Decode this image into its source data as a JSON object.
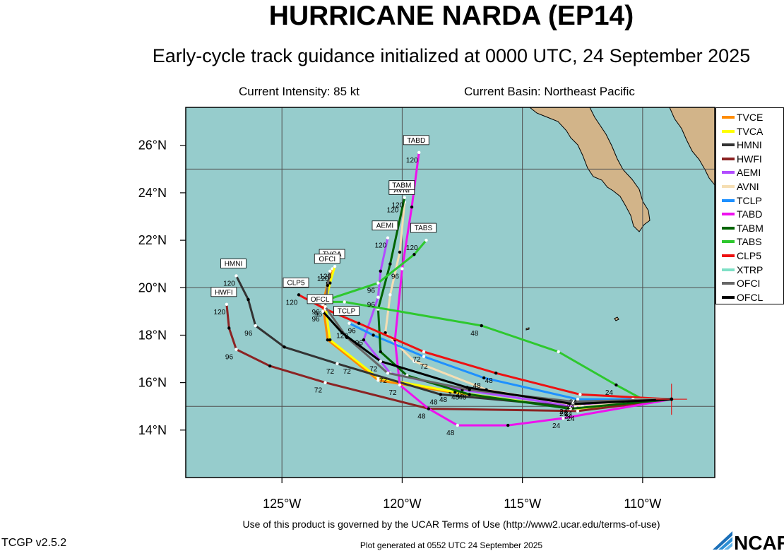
{
  "header": {
    "title": "HURRICANE NARDA (EP14)",
    "subtitle": "Early-cycle track guidance initialized at 0000 UTC, 24 September 2025",
    "intensity": "Current Intensity: 85 kt",
    "basin": "Current Basin: Northeast Pacific"
  },
  "footer": {
    "terms": "Use of this product is governed by the UCAR Terms of Use (http://www2.ucar.edu/terms-of-use)",
    "version": "TCGP v2.5.2",
    "generated": "Plot generated at 0552 UTC  24 September 2025",
    "logo_text": "NCAR"
  },
  "colors": {
    "ocean": "#96cccc",
    "land": "#d2b489",
    "grid": "#505050",
    "storm_marker": "#dd2222"
  },
  "chart_data": {
    "type": "line",
    "xlim": [
      -129,
      -107
    ],
    "ylim": [
      12,
      27.6
    ],
    "x_ticks": [
      -125,
      -120,
      -115,
      -110
    ],
    "x_tick_labels": [
      "125°W",
      "120°W",
      "115°W",
      "110°W"
    ],
    "y_ticks": [
      14,
      16,
      18,
      20,
      22,
      24,
      26
    ],
    "y_tick_labels": [
      "14°N",
      "16°N",
      "18°N",
      "20°N",
      "22°N",
      "24°N",
      "26°N"
    ],
    "grid": true,
    "legend_position": "right",
    "initial_position": [
      -108.8,
      15.3
    ],
    "series": [
      {
        "name": "TVCE",
        "color": "#ff8c00",
        "points": [
          [
            -108.8,
            15.3
          ],
          [
            -112.8,
            14.9
          ],
          [
            -118.0,
            15.6
          ],
          [
            -121.0,
            16.1
          ],
          [
            -123.1,
            17.8
          ],
          [
            -123.3,
            19.3
          ],
          [
            -123.1,
            20.2
          ],
          [
            -122.9,
            20.8
          ]
        ],
        "hour_labels": [
          {
            "lon": -112.8,
            "lat": 14.9,
            "text": "24"
          },
          {
            "lon": -118.0,
            "lat": 15.6,
            "text": "48"
          },
          {
            "lon": -122.0,
            "lat": 16.8,
            "text": "72"
          },
          {
            "lon": -123.3,
            "lat": 19.3,
            "text": "96"
          },
          {
            "lon": -122.9,
            "lat": 20.8,
            "text": "120"
          }
        ]
      },
      {
        "name": "TVCA",
        "color": "#ffff00",
        "points": [
          [
            -108.8,
            15.3
          ],
          [
            -112.8,
            14.9
          ],
          [
            -117.8,
            15.6
          ],
          [
            -121.0,
            16.2
          ],
          [
            -123.0,
            17.8
          ],
          [
            -123.2,
            19.3
          ],
          [
            -123.0,
            20.2
          ],
          [
            -122.8,
            20.9
          ]
        ],
        "hour_labels": [],
        "tag": "TVCA"
      },
      {
        "name": "HMNI",
        "color": "#333333",
        "points": [
          [
            -108.8,
            15.3
          ],
          [
            -113.0,
            15.0
          ],
          [
            -118.4,
            15.5
          ],
          [
            -122.7,
            16.8
          ],
          [
            -124.9,
            17.5
          ],
          [
            -126.1,
            18.4
          ],
          [
            -126.4,
            19.5
          ],
          [
            -126.9,
            20.5
          ]
        ],
        "hour_labels": [
          {
            "lon": -113.0,
            "lat": 15.0,
            "text": "24"
          },
          {
            "lon": -118.4,
            "lat": 15.5,
            "text": "48"
          },
          {
            "lon": -122.7,
            "lat": 16.8,
            "text": "72"
          },
          {
            "lon": -126.1,
            "lat": 18.4,
            "text": "96"
          },
          {
            "lon": -126.9,
            "lat": 20.5,
            "text": "120"
          }
        ],
        "tag": "HMNI"
      },
      {
        "name": "HWFI",
        "color": "#8b2323",
        "points": [
          [
            -108.8,
            15.3
          ],
          [
            -112.7,
            14.8
          ],
          [
            -118.9,
            14.9
          ],
          [
            -123.2,
            16.0
          ],
          [
            -125.5,
            16.7
          ],
          [
            -126.9,
            17.4
          ],
          [
            -127.2,
            18.3
          ],
          [
            -127.3,
            19.3
          ]
        ],
        "hour_labels": [
          {
            "lon": -112.7,
            "lat": 14.8,
            "text": "24"
          },
          {
            "lon": -118.9,
            "lat": 14.9,
            "text": "48"
          },
          {
            "lon": -123.2,
            "lat": 16.0,
            "text": "72"
          },
          {
            "lon": -126.9,
            "lat": 17.4,
            "text": "96"
          },
          {
            "lon": -127.3,
            "lat": 19.3,
            "text": "120"
          }
        ],
        "tag": "HWFI"
      },
      {
        "name": "AEMI",
        "color": "#b24cff",
        "points": [
          [
            -108.8,
            15.3
          ],
          [
            -112.8,
            15.0
          ],
          [
            -117.5,
            15.7
          ],
          [
            -120.5,
            16.4
          ],
          [
            -121.6,
            17.8
          ],
          [
            -121.0,
            19.6
          ],
          [
            -120.9,
            20.7
          ],
          [
            -120.6,
            22.1
          ]
        ],
        "hour_labels": [
          {
            "lon": -112.8,
            "lat": 15.0,
            "text": "24"
          },
          {
            "lon": -117.5,
            "lat": 15.7,
            "text": "48"
          },
          {
            "lon": -120.5,
            "lat": 16.4,
            "text": "72"
          },
          {
            "lon": -121.0,
            "lat": 19.6,
            "text": "96"
          },
          {
            "lon": -120.6,
            "lat": 22.1,
            "text": "120"
          }
        ],
        "tag": "AEMI"
      },
      {
        "name": "AVNI",
        "color": "#f5deb3",
        "points": [
          [
            -108.8,
            15.3
          ],
          [
            -112.5,
            15.0
          ],
          [
            -116.5,
            15.7
          ],
          [
            -119.5,
            16.9
          ],
          [
            -120.7,
            18.1
          ],
          [
            -120.5,
            19.7
          ],
          [
            -120.1,
            21.5
          ],
          [
            -119.9,
            23.6
          ]
        ],
        "hour_labels": [
          {
            "lon": -120.1,
            "lat": 23.6,
            "text": "120"
          }
        ],
        "tag": "AVNI"
      },
      {
        "name": "TCLP",
        "color": "#1e90ff",
        "points": [
          [
            -108.8,
            15.3
          ],
          [
            -112.7,
            15.3
          ],
          [
            -116.6,
            16.2
          ],
          [
            -119.1,
            17.1
          ],
          [
            -121.2,
            18.0
          ],
          [
            -122.2,
            18.5
          ]
        ],
        "hour_labels": [
          {
            "lon": -112.7,
            "lat": 15.3,
            "text": "24"
          },
          {
            "lon": -116.6,
            "lat": 16.2,
            "text": "48"
          },
          {
            "lon": -118.8,
            "lat": 17.0,
            "text": "72"
          },
          {
            "lon": -121.5,
            "lat": 18.0,
            "text": "96"
          },
          {
            "lon": -122.2,
            "lat": 18.3,
            "text": "120"
          }
        ],
        "tag": "TCLP"
      },
      {
        "name": "TABD",
        "color": "#ee11ee",
        "points": [
          [
            -108.8,
            15.3
          ],
          [
            -113.3,
            14.5
          ],
          [
            -115.6,
            14.2
          ],
          [
            -117.7,
            14.2
          ],
          [
            -118.9,
            14.9
          ],
          [
            -120.1,
            15.9
          ],
          [
            -120.3,
            17.8
          ],
          [
            -120.0,
            20.8
          ],
          [
            -119.6,
            23.4
          ],
          [
            -119.3,
            25.7
          ]
        ],
        "hour_labels": [
          {
            "lon": -113.3,
            "lat": 14.5,
            "text": "24"
          },
          {
            "lon": -117.7,
            "lat": 14.2,
            "text": "48"
          },
          {
            "lon": -120.1,
            "lat": 15.9,
            "text": "72"
          },
          {
            "lon": -120.0,
            "lat": 20.8,
            "text": "96"
          },
          {
            "lon": -119.3,
            "lat": 25.7,
            "text": "120"
          }
        ],
        "tag": "TABD"
      },
      {
        "name": "TABM",
        "color": "#006400",
        "points": [
          [
            -108.8,
            15.3
          ],
          [
            -113.0,
            14.9
          ],
          [
            -117.2,
            15.5
          ],
          [
            -119.8,
            16.3
          ],
          [
            -120.9,
            17.3
          ],
          [
            -121.0,
            19.1
          ],
          [
            -120.5,
            21.0
          ],
          [
            -119.9,
            23.8
          ]
        ],
        "hour_labels": [
          {
            "lon": -119.9,
            "lat": 23.8,
            "text": "120"
          }
        ],
        "tag": "TABM"
      },
      {
        "name": "TABS",
        "color": "#2ec82e",
        "points": [
          [
            -108.8,
            15.3
          ],
          [
            -110.0,
            15.3
          ],
          [
            -111.1,
            15.9
          ],
          [
            -113.5,
            17.3
          ],
          [
            -116.7,
            18.4
          ],
          [
            -122.4,
            19.4
          ],
          [
            -123.4,
            19.4
          ],
          [
            -121.0,
            20.2
          ],
          [
            -119.5,
            21.4
          ],
          [
            -119.0,
            22.0
          ]
        ],
        "hour_labels": [
          {
            "lon": -111.1,
            "lat": 15.9,
            "text": "24"
          },
          {
            "lon": -116.7,
            "lat": 18.4,
            "text": "48"
          },
          {
            "lon": -122.4,
            "lat": 19.4,
            "text": "72"
          },
          {
            "lon": -121.0,
            "lat": 20.2,
            "text": "96"
          },
          {
            "lon": -119.3,
            "lat": 22.0,
            "text": "120"
          }
        ],
        "tag": "TABS"
      },
      {
        "name": "CLP5",
        "color": "#ee1111",
        "points": [
          [
            -108.8,
            15.3
          ],
          [
            -112.6,
            15.5
          ],
          [
            -116.1,
            16.4
          ],
          [
            -119.1,
            17.3
          ],
          [
            -121.8,
            18.5
          ],
          [
            -123.2,
            19.1
          ],
          [
            -124.3,
            19.7
          ]
        ],
        "hour_labels": [
          {
            "lon": -112.6,
            "lat": 15.5,
            "text": "24"
          },
          {
            "lon": -116.1,
            "lat": 16.4,
            "text": "48"
          },
          {
            "lon": -119.1,
            "lat": 17.3,
            "text": "72"
          },
          {
            "lon": -121.8,
            "lat": 18.5,
            "text": "96"
          },
          {
            "lon": -124.3,
            "lat": 19.7,
            "text": "120"
          }
        ],
        "tag": "CLP5"
      },
      {
        "name": "XTRP",
        "color": "#7fe0c6",
        "points": [
          [
            -108.8,
            15.3
          ],
          [
            -110.4,
            15.3
          ]
        ],
        "hour_labels": []
      },
      {
        "name": "OFCI",
        "color": "#666666",
        "points": [
          [
            -108.8,
            15.3
          ],
          [
            -112.9,
            15.2
          ],
          [
            -117.2,
            15.7
          ],
          [
            -120.6,
            16.4
          ],
          [
            -122.3,
            17.9
          ],
          [
            -123.2,
            19.2
          ],
          [
            -123.1,
            20.1
          ],
          [
            -123.0,
            20.7
          ]
        ],
        "hour_labels": [
          {
            "lon": -117.2,
            "lat": 15.7,
            "text": "48"
          },
          {
            "lon": -123.2,
            "lat": 19.2,
            "text": "96"
          },
          {
            "lon": -123.0,
            "lat": 20.7,
            "text": "120"
          }
        ],
        "tag": "OFCI"
      },
      {
        "name": "OFCL",
        "color": "#000000",
        "points": [
          [
            -108.8,
            15.3
          ],
          [
            -112.9,
            15.1
          ],
          [
            -117.3,
            15.8
          ],
          [
            -120.9,
            16.9
          ],
          [
            -122.5,
            18.1
          ],
          [
            -123.3,
            19.0
          ]
        ],
        "hour_labels": [
          {
            "lon": -113.0,
            "lat": 15.1,
            "text": "24"
          },
          {
            "lon": -117.3,
            "lat": 15.8,
            "text": "48"
          },
          {
            "lon": -120.9,
            "lat": 16.9,
            "text": "72"
          },
          {
            "lon": -123.3,
            "lat": 19.0,
            "text": "96"
          }
        ],
        "tag": "OFCL"
      }
    ]
  }
}
